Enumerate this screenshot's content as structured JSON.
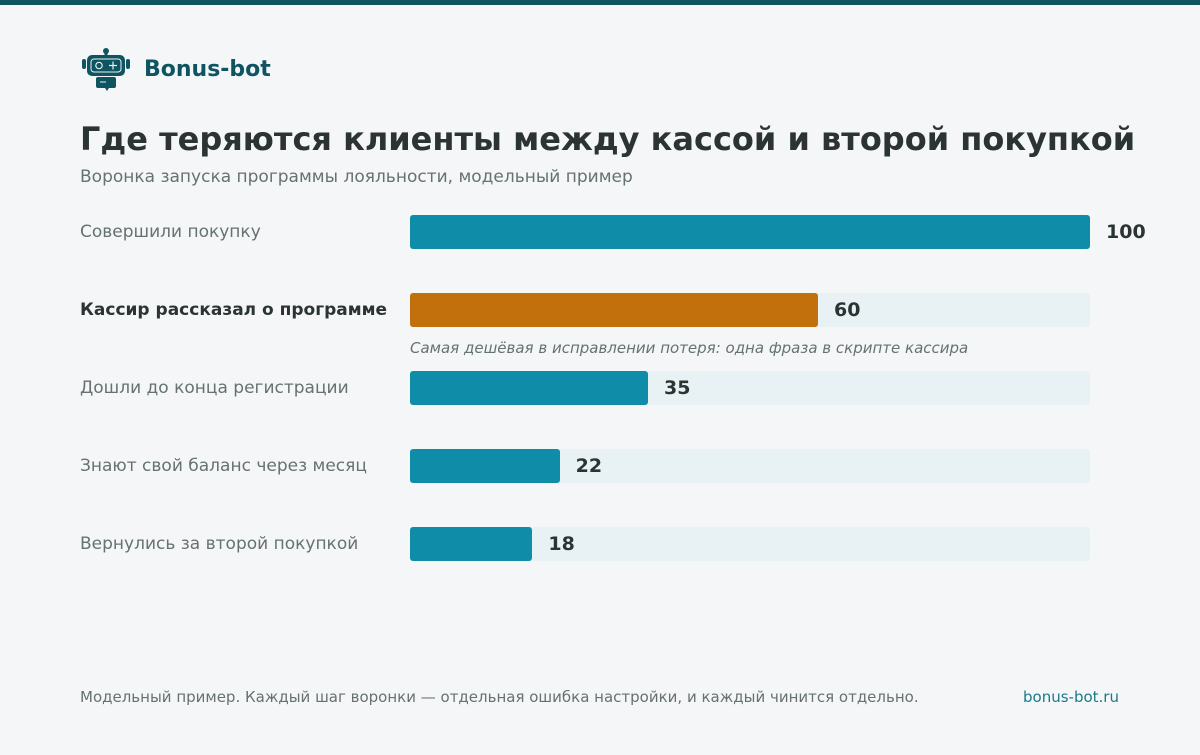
{
  "brand": {
    "name": "Bonus-bot",
    "logo_icon": "robot-icon",
    "color": "#0f5561"
  },
  "header": {
    "title": "Где теряются клиенты между кассой и второй покупкой",
    "subtitle": "Воронка запуска программы лояльности, модельный пример"
  },
  "chart_data": {
    "type": "bar",
    "orientation": "horizontal",
    "categories": [
      "Совершили покупку",
      "Кассир рассказал о программе",
      "Дошли до конца регистрации",
      "Знают свой баланс через месяц",
      "Вернулись за второй покупкой"
    ],
    "values": [
      100,
      60,
      35,
      22,
      18
    ],
    "labels": [
      "100",
      "60",
      "35",
      "22",
      "18"
    ],
    "xlim": [
      0,
      100
    ],
    "highlight_index": 1,
    "colors": {
      "default": "#0e8ca8",
      "highlight": "#c2700b",
      "track": "#e8f1f3"
    },
    "annotation": "Самая дешёвая в исправлении потеря: одна фраза в скрипте кассира",
    "grid": false
  },
  "footer": {
    "note": "Модельный пример. Каждый шаг воронки — отдельная ошибка настройки, и каждый чинится отдельно.",
    "link": "bonus-bot.ru"
  }
}
